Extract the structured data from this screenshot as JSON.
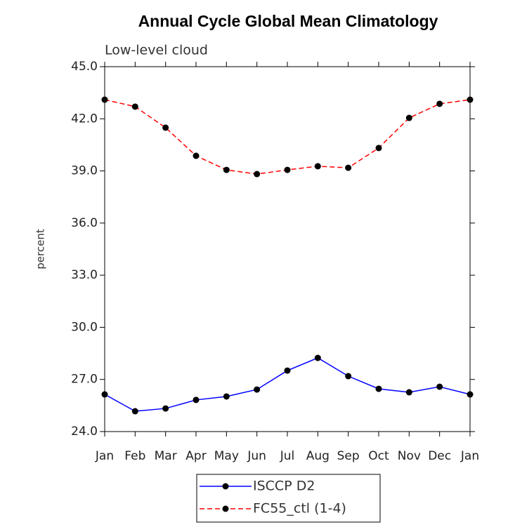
{
  "chart_data": {
    "type": "line",
    "title": "Annual Cycle Global Mean Climatology",
    "subtitle": "Low-level cloud",
    "y_label": "percent",
    "categories": [
      "Jan",
      "Feb",
      "Mar",
      "Apr",
      "May",
      "Jun",
      "Jul",
      "Aug",
      "Sep",
      "Oct",
      "Nov",
      "Dec",
      "Jan"
    ],
    "series": [
      {
        "name": "ISCCP D2",
        "color": "#0000ff",
        "dash": false,
        "values": [
          26.14,
          25.17,
          25.33,
          25.82,
          26.02,
          26.42,
          27.51,
          28.24,
          27.19,
          26.46,
          26.26,
          26.58,
          26.14
        ]
      },
      {
        "name": "FC55_ctl (1-4)",
        "color": "#ff0000",
        "dash": true,
        "values": [
          43.1,
          42.7,
          41.49,
          39.87,
          39.06,
          38.82,
          39.06,
          39.27,
          39.18,
          40.32,
          42.05,
          42.86,
          43.1
        ]
      }
    ],
    "ylim": [
      24,
      45
    ],
    "yticks": [
      {
        "value": 24,
        "label": "24.0"
      },
      {
        "value": 27,
        "label": "27.0"
      },
      {
        "value": 30,
        "label": "30.0"
      },
      {
        "value": 33,
        "label": "33.0"
      },
      {
        "value": 36,
        "label": "36.0"
      },
      {
        "value": 39,
        "label": "39.0"
      },
      {
        "value": 42,
        "label": "42.0"
      },
      {
        "value": 45,
        "label": "45.0"
      }
    ]
  }
}
